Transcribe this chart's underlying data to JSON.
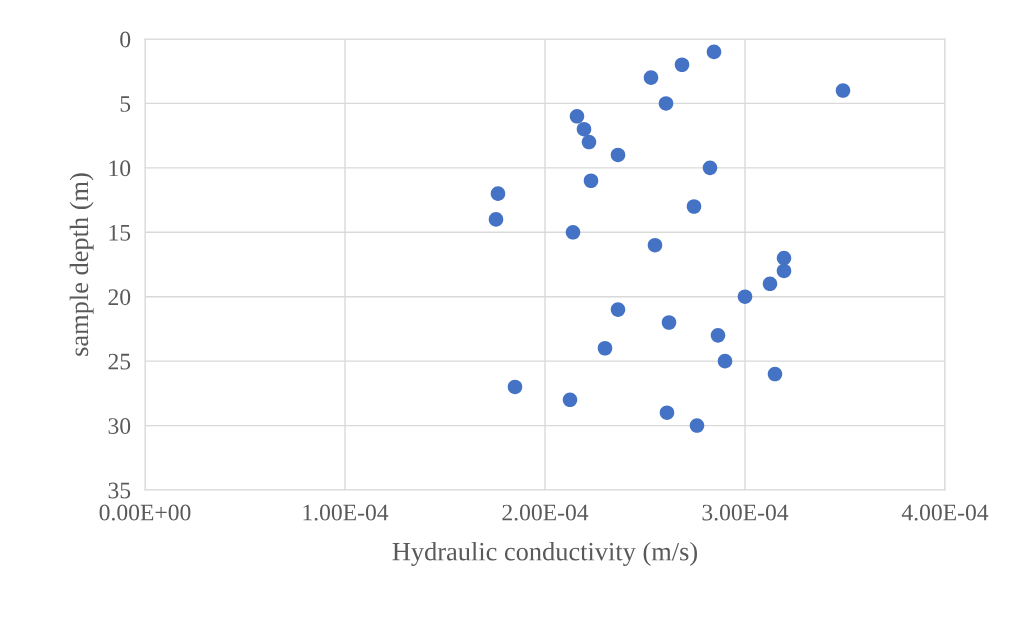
{
  "chart_data": {
    "type": "scatter",
    "xlabel": "Hydraulic conductivity (m/s)",
    "ylabel": "sample depth (m)",
    "x": [
      0.0002845,
      0.0002685,
      0.000253,
      0.000349,
      0.0002605,
      0.000216,
      0.0002195,
      0.000222,
      0.0002365,
      0.0002825,
      0.000223,
      0.0001765,
      0.0002745,
      0.0001755,
      0.000214,
      0.000255,
      0.0003195,
      0.0003195,
      0.0003125,
      0.0003,
      0.0002365,
      0.000262,
      0.0002865,
      0.00023,
      0.00029,
      0.000315,
      0.000185,
      0.0002125,
      0.000261,
      0.000276
    ],
    "series": [
      {
        "color": "#4472c4",
        "values": [
          1,
          2,
          3,
          4,
          5,
          6,
          7,
          8,
          9,
          10,
          11,
          12,
          13,
          14,
          15,
          16,
          17,
          18,
          19,
          20,
          21,
          22,
          23,
          24,
          25,
          26,
          27,
          28,
          29,
          30
        ]
      }
    ],
    "xlim": [
      0,
      0.0004
    ],
    "xticks": [
      {
        "value": 0,
        "label": "0.00E+00"
      },
      {
        "value": 0.0001,
        "label": "1.00E-04"
      },
      {
        "value": 0.0002,
        "label": "2.00E-04"
      },
      {
        "value": 0.0003,
        "label": "3.00E-04"
      },
      {
        "value": 0.0004,
        "label": "4.00E-04"
      }
    ],
    "ylim": [
      35,
      0
    ],
    "yticks": [
      0,
      5,
      10,
      15,
      20,
      25,
      30,
      35
    ],
    "grid": true,
    "marker": "circle"
  }
}
